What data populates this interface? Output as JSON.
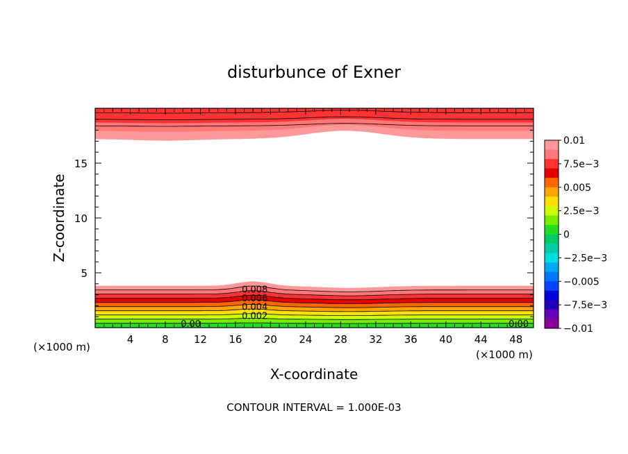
{
  "chart_data": {
    "type": "contour",
    "title": "disturbunce of Exner",
    "xlabel": "X-coordinate",
    "ylabel": "Z-coordinate",
    "x_unit_left": "(×1000 m)",
    "x_unit_right": "(×1000 m)",
    "xlim": [
      0,
      50
    ],
    "ylim": [
      0,
      20
    ],
    "x_ticks": [
      4,
      8,
      12,
      16,
      20,
      24,
      28,
      32,
      36,
      40,
      44,
      48
    ],
    "y_ticks": [
      5,
      10,
      15
    ],
    "footer": "CONTOUR INTERVAL = 1.000E-03",
    "contour_interval": 0.001,
    "contour_labels": [
      {
        "text": "0.008",
        "x": 18.2,
        "y": 3.2
      },
      {
        "text": "0.006",
        "x": 18.2,
        "y": 2.4
      },
      {
        "text": "0.004",
        "x": 18.2,
        "y": 1.6
      },
      {
        "text": "0.002",
        "x": 18.2,
        "y": 0.8
      },
      {
        "text": "0.00",
        "x": 10.9,
        "y": 0.05
      },
      {
        "text": "0.00",
        "x": 48.3,
        "y": 0.05
      }
    ],
    "colorbar": {
      "labels": [
        "0.01",
        "7.5e-3",
        "0.005",
        "2.5e-3",
        "0",
        "-2.5e-3",
        "-0.005",
        "-7.5e-3",
        "-0.01"
      ],
      "colors_top_to_bottom": [
        "#ff9999",
        "#ff7777",
        "#ff3333",
        "#e60000",
        "#ff6600",
        "#ffa500",
        "#ffe000",
        "#ccff00",
        "#77ee00",
        "#22dd22",
        "#00cc66",
        "#00ccaa",
        "#00dddd",
        "#00aaee",
        "#0077ff",
        "#0044ff",
        "#0000dd",
        "#2200bb",
        "#6600bb",
        "#880099"
      ]
    },
    "bottom_band_colors": [
      "#22dd22",
      "#77ee00",
      "#ccff00",
      "#ffe000",
      "#ffa500",
      "#ff6600",
      "#e60000",
      "#ff3333",
      "#ff7777",
      "#ff9999"
    ],
    "top_band_colors": [
      "#ff9999",
      "#ff7777",
      "#ff3333"
    ]
  }
}
